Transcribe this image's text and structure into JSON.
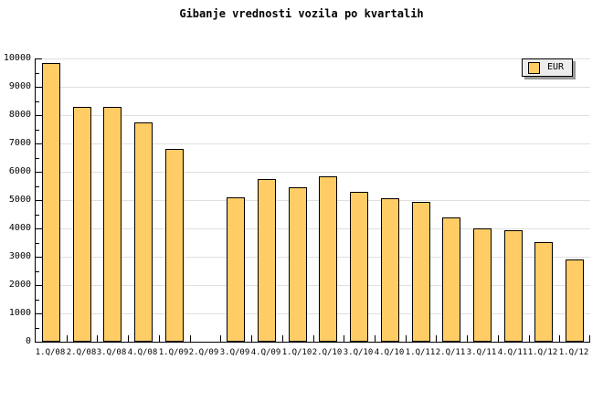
{
  "title": "Gibanje vrednosti vozila po kvartalih",
  "legend": {
    "items": [
      {
        "label": "EUR",
        "swatch_color": "#ffcc66"
      }
    ]
  },
  "colors": {
    "bar_fill": "#ffcc66",
    "bar_border": "#000000",
    "gridline": "#e0e0e0",
    "axis": "#000000",
    "legend_bg": "#ececec",
    "legend_shadow": "#999999",
    "background": "#ffffff"
  },
  "chart_data": {
    "type": "bar",
    "title": "Gibanje vrednosti vozila po kvartalih",
    "categories": [
      "1.Q/08",
      "2.Q/08",
      "3.Q/08",
      "4.Q/08",
      "1.Q/09",
      "2.Q/09",
      "3.Q/09",
      "4.Q/09",
      "1.Q/10",
      "2.Q/10",
      "3.Q/10",
      "4.Q/10",
      "1.Q/11",
      "2.Q/11",
      "3.Q/11",
      "4.Q/11",
      "1.Q/12",
      "1.Q/12"
    ],
    "series": [
      {
        "name": "EUR",
        "values": [
          9850,
          8300,
          8300,
          7750,
          6800,
          null,
          5100,
          5750,
          5450,
          5850,
          5300,
          5050,
          4950,
          4400,
          4000,
          3950,
          3500,
          2900
        ]
      }
    ],
    "missing_categories": [
      "2.Q/09"
    ],
    "xlabel": "",
    "ylabel": "",
    "ylim": [
      0,
      10000
    ],
    "y_major_step": 1000,
    "y_minor_step": 500,
    "y_tick_labels": [
      "0",
      "1000",
      "2000",
      "3000",
      "4000",
      "5000",
      "6000",
      "7000",
      "8000",
      "9000",
      "10000"
    ],
    "grid": "horizontal-major",
    "legend_position": "top-right"
  }
}
